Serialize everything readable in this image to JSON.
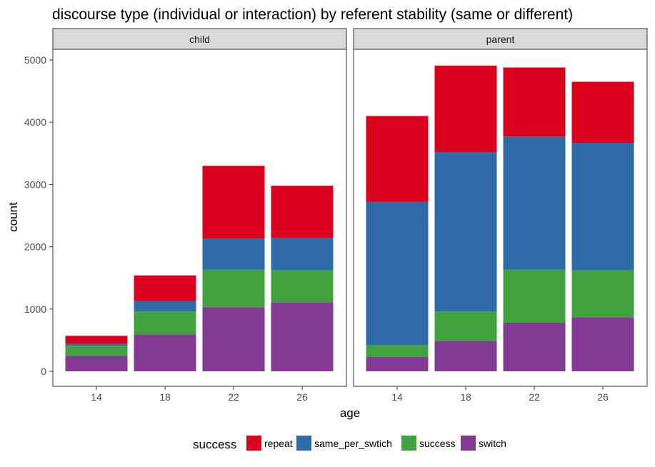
{
  "chart_data": {
    "type": "bar",
    "stacked": true,
    "title": "discourse type (individual or interaction) by referent stability (same or different)",
    "xlabel": "age",
    "ylabel": "count",
    "ylim": [
      0,
      5000
    ],
    "yticks": [
      0,
      1000,
      2000,
      3000,
      4000,
      5000
    ],
    "categories": [
      "14",
      "18",
      "22",
      "26"
    ],
    "grid": false,
    "legend": {
      "title": "success",
      "position": "bottom"
    },
    "series_styles": [
      {
        "name": "switch",
        "color": "#833a91"
      },
      {
        "name": "success",
        "color": "#41a33e"
      },
      {
        "name": "same_per_swtich",
        "color": "#2f6ba9"
      },
      {
        "name": "repeat",
        "color": "#db001b"
      }
    ],
    "legend_order": [
      "repeat",
      "same_per_swtich",
      "success",
      "switch"
    ],
    "panels": [
      {
        "label": "child",
        "series": [
          {
            "name": "switch",
            "values": [
              250,
              590,
              1030,
              1110
            ]
          },
          {
            "name": "success",
            "values": [
              160,
              370,
              600,
              510
            ]
          },
          {
            "name": "same_per_swtich",
            "values": [
              30,
              170,
              500,
              520
            ]
          },
          {
            "name": "repeat",
            "values": [
              130,
              410,
              1170,
              840
            ]
          }
        ]
      },
      {
        "label": "parent",
        "series": [
          {
            "name": "switch",
            "values": [
              230,
              490,
              780,
              870
            ]
          },
          {
            "name": "success",
            "values": [
              190,
              470,
              850,
              750
            ]
          },
          {
            "name": "same_per_swtich",
            "values": [
              2300,
              2560,
              2140,
              2050
            ]
          },
          {
            "name": "repeat",
            "values": [
              1380,
              1390,
              1110,
              980
            ]
          }
        ]
      }
    ]
  }
}
